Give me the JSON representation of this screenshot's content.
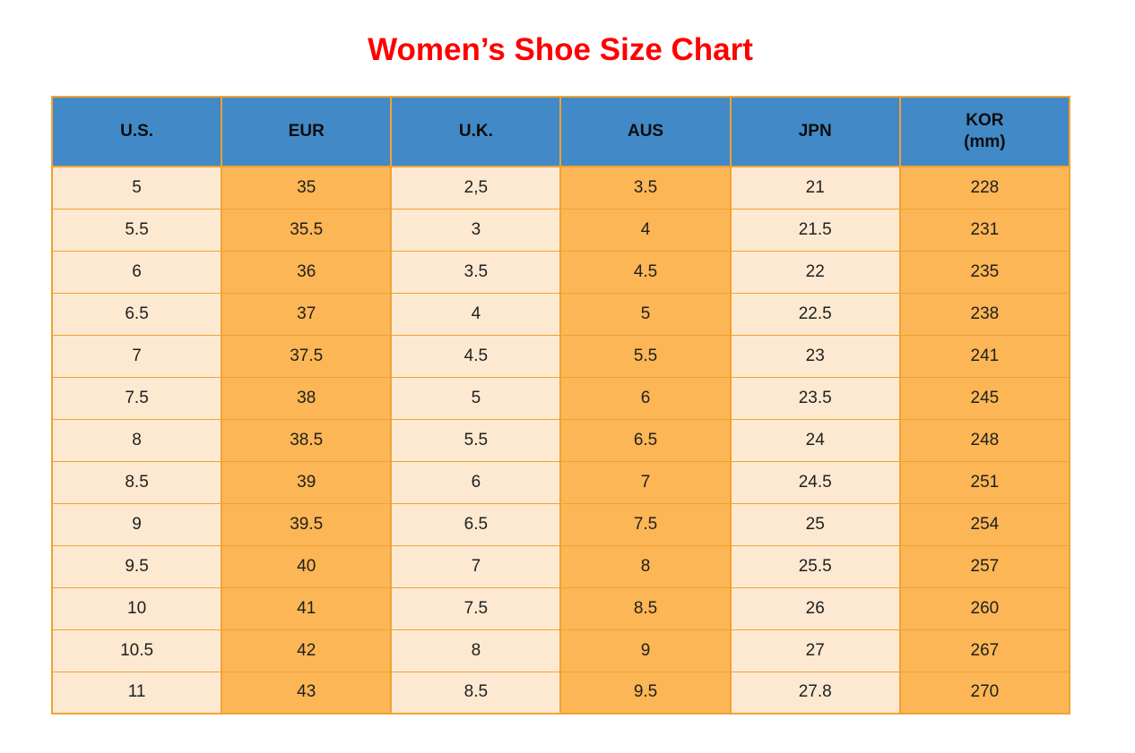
{
  "page": {
    "title": "Women’s Shoe Size Chart"
  },
  "colors": {
    "title_red": "#ff0000",
    "header_blue": "#4289c7",
    "cell_cream": "#fde9d1",
    "cell_orange": "#fcb655",
    "border_orange": "#f0a232"
  },
  "table": {
    "columns": [
      {
        "label": "U.S."
      },
      {
        "label": "EUR"
      },
      {
        "label": "U.K."
      },
      {
        "label": "AUS"
      },
      {
        "label": "JPN"
      },
      {
        "label": "KOR",
        "sublabel": "(mm)"
      }
    ],
    "rows": [
      [
        "5",
        "35",
        "2,5",
        "3.5",
        "21",
        "228"
      ],
      [
        "5.5",
        "35.5",
        "3",
        "4",
        "21.5",
        "231"
      ],
      [
        "6",
        "36",
        "3.5",
        "4.5",
        "22",
        "235"
      ],
      [
        "6.5",
        "37",
        "4",
        "5",
        "22.5",
        "238"
      ],
      [
        "7",
        "37.5",
        "4.5",
        "5.5",
        "23",
        "241"
      ],
      [
        "7.5",
        "38",
        "5",
        "6",
        "23.5",
        "245"
      ],
      [
        "8",
        "38.5",
        "5.5",
        "6.5",
        "24",
        "248"
      ],
      [
        "8.5",
        "39",
        "6",
        "7",
        "24.5",
        "251"
      ],
      [
        "9",
        "39.5",
        "6.5",
        "7.5",
        "25",
        "254"
      ],
      [
        "9.5",
        "40",
        "7",
        "8",
        "25.5",
        "257"
      ],
      [
        "10",
        "41",
        "7.5",
        "8.5",
        "26",
        "260"
      ],
      [
        "10.5",
        "42",
        "8",
        "9",
        "27",
        "267"
      ],
      [
        "11",
        "43",
        "8.5",
        "9.5",
        "27.8",
        "270"
      ]
    ]
  },
  "chart_data": {
    "type": "table",
    "title": "Women’s Shoe Size Chart",
    "columns": [
      "U.S.",
      "EUR",
      "U.K.",
      "AUS",
      "JPN",
      "KOR (mm)"
    ],
    "rows": [
      [
        "5",
        "35",
        "2,5",
        "3.5",
        "21",
        "228"
      ],
      [
        "5.5",
        "35.5",
        "3",
        "4",
        "21.5",
        "231"
      ],
      [
        "6",
        "36",
        "3.5",
        "4.5",
        "22",
        "235"
      ],
      [
        "6.5",
        "37",
        "4",
        "5",
        "22.5",
        "238"
      ],
      [
        "7",
        "37.5",
        "4.5",
        "5.5",
        "23",
        "241"
      ],
      [
        "7.5",
        "38",
        "5",
        "6",
        "23.5",
        "245"
      ],
      [
        "8",
        "38.5",
        "5.5",
        "6.5",
        "24",
        "248"
      ],
      [
        "8.5",
        "39",
        "6",
        "7",
        "24.5",
        "251"
      ],
      [
        "9",
        "39.5",
        "6.5",
        "7.5",
        "25",
        "254"
      ],
      [
        "9.5",
        "40",
        "7",
        "8",
        "25.5",
        "257"
      ],
      [
        "10",
        "41",
        "7.5",
        "8.5",
        "26",
        "260"
      ],
      [
        "10.5",
        "42",
        "8",
        "9",
        "27",
        "267"
      ],
      [
        "11",
        "43",
        "8.5",
        "9.5",
        "27.8",
        "270"
      ]
    ],
    "layout": {
      "header_background": "#4289c7",
      "column_fill_pattern": [
        "#fde9d1",
        "#fcb655"
      ],
      "grid": "on"
    }
  }
}
